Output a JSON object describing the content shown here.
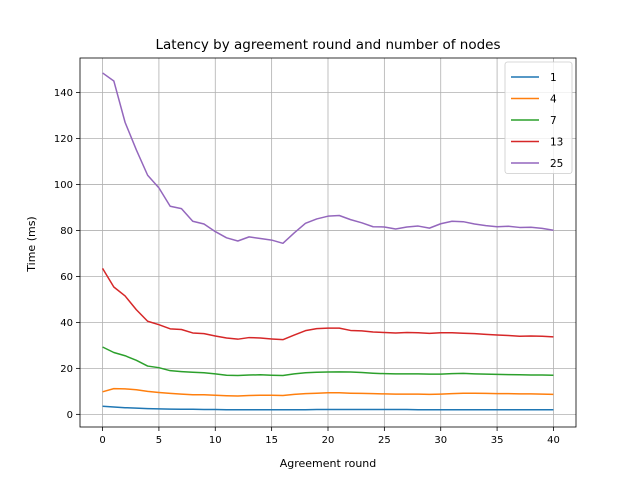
{
  "chart_data": {
    "type": "line",
    "title": "Latency by agreement round and number of nodes",
    "xlabel": "Agreement round",
    "ylabel": "Time (ms)",
    "xlim": [
      -2,
      42
    ],
    "ylim": [
      -5.5,
      155
    ],
    "xticks": [
      0,
      5,
      10,
      15,
      20,
      25,
      30,
      35,
      40
    ],
    "yticks": [
      0,
      20,
      40,
      60,
      80,
      100,
      120,
      140
    ],
    "grid": true,
    "legend_position": "top-right",
    "series": [
      {
        "name": "1",
        "color": "#1f77b4",
        "values": [
          3.5,
          3.2,
          2.9,
          2.7,
          2.5,
          2.4,
          2.3,
          2.2,
          2.2,
          2.1,
          2.1,
          2.0,
          2.0,
          2.0,
          2.0,
          2.0,
          2.0,
          2.0,
          2.0,
          2.1,
          2.1,
          2.1,
          2.1,
          2.1,
          2.1,
          2.1,
          2.1,
          2.1,
          2.0,
          2.0,
          2.0,
          2.0,
          2.0,
          2.0,
          2.0,
          2.0,
          2.0,
          2.0,
          2.0,
          2.0,
          2.0
        ]
      },
      {
        "name": "4",
        "color": "#ff7f0e",
        "values": [
          9.8,
          11.2,
          11.1,
          10.7,
          10.0,
          9.5,
          9.1,
          8.8,
          8.5,
          8.5,
          8.3,
          8.1,
          8.0,
          8.2,
          8.3,
          8.3,
          8.2,
          8.7,
          9.0,
          9.2,
          9.4,
          9.4,
          9.2,
          9.1,
          9.0,
          8.9,
          8.8,
          8.8,
          8.8,
          8.7,
          8.8,
          9.0,
          9.2,
          9.2,
          9.1,
          9.0,
          9.0,
          8.9,
          8.9,
          8.8,
          8.7
        ]
      },
      {
        "name": "7",
        "color": "#2ca02c",
        "values": [
          29.3,
          26.9,
          25.5,
          23.5,
          21.0,
          20.3,
          19.0,
          18.6,
          18.3,
          18.1,
          17.6,
          17.0,
          16.9,
          17.1,
          17.2,
          17.0,
          16.9,
          17.6,
          18.1,
          18.3,
          18.4,
          18.5,
          18.4,
          18.2,
          17.9,
          17.7,
          17.6,
          17.6,
          17.6,
          17.5,
          17.5,
          17.7,
          17.8,
          17.6,
          17.5,
          17.4,
          17.3,
          17.2,
          17.1,
          17.1,
          17.0
        ]
      },
      {
        "name": "13",
        "color": "#d62728",
        "values": [
          63.5,
          55.4,
          51.5,
          45.5,
          40.5,
          39.0,
          37.2,
          36.9,
          35.4,
          35.1,
          34.1,
          33.2,
          32.7,
          33.4,
          33.2,
          32.8,
          32.5,
          34.5,
          36.4,
          37.3,
          37.5,
          37.5,
          36.5,
          36.3,
          35.8,
          35.6,
          35.4,
          35.6,
          35.5,
          35.2,
          35.5,
          35.5,
          35.3,
          35.1,
          34.8,
          34.5,
          34.3,
          34.0,
          34.1,
          34.0,
          33.7
        ]
      },
      {
        "name": "25",
        "color": "#9467bd",
        "values": [
          148.5,
          145.0,
          127.0,
          115.0,
          104.0,
          98.5,
          90.5,
          89.5,
          84.0,
          82.8,
          79.5,
          76.8,
          75.4,
          77.2,
          76.5,
          75.8,
          74.4,
          78.9,
          83.1,
          85.0,
          86.2,
          86.5,
          84.7,
          83.3,
          81.6,
          81.5,
          80.6,
          81.5,
          81.9,
          81.0,
          82.9,
          84.0,
          83.8,
          82.8,
          82.1,
          81.6,
          81.8,
          81.3,
          81.4,
          80.9,
          80.1
        ]
      }
    ]
  }
}
